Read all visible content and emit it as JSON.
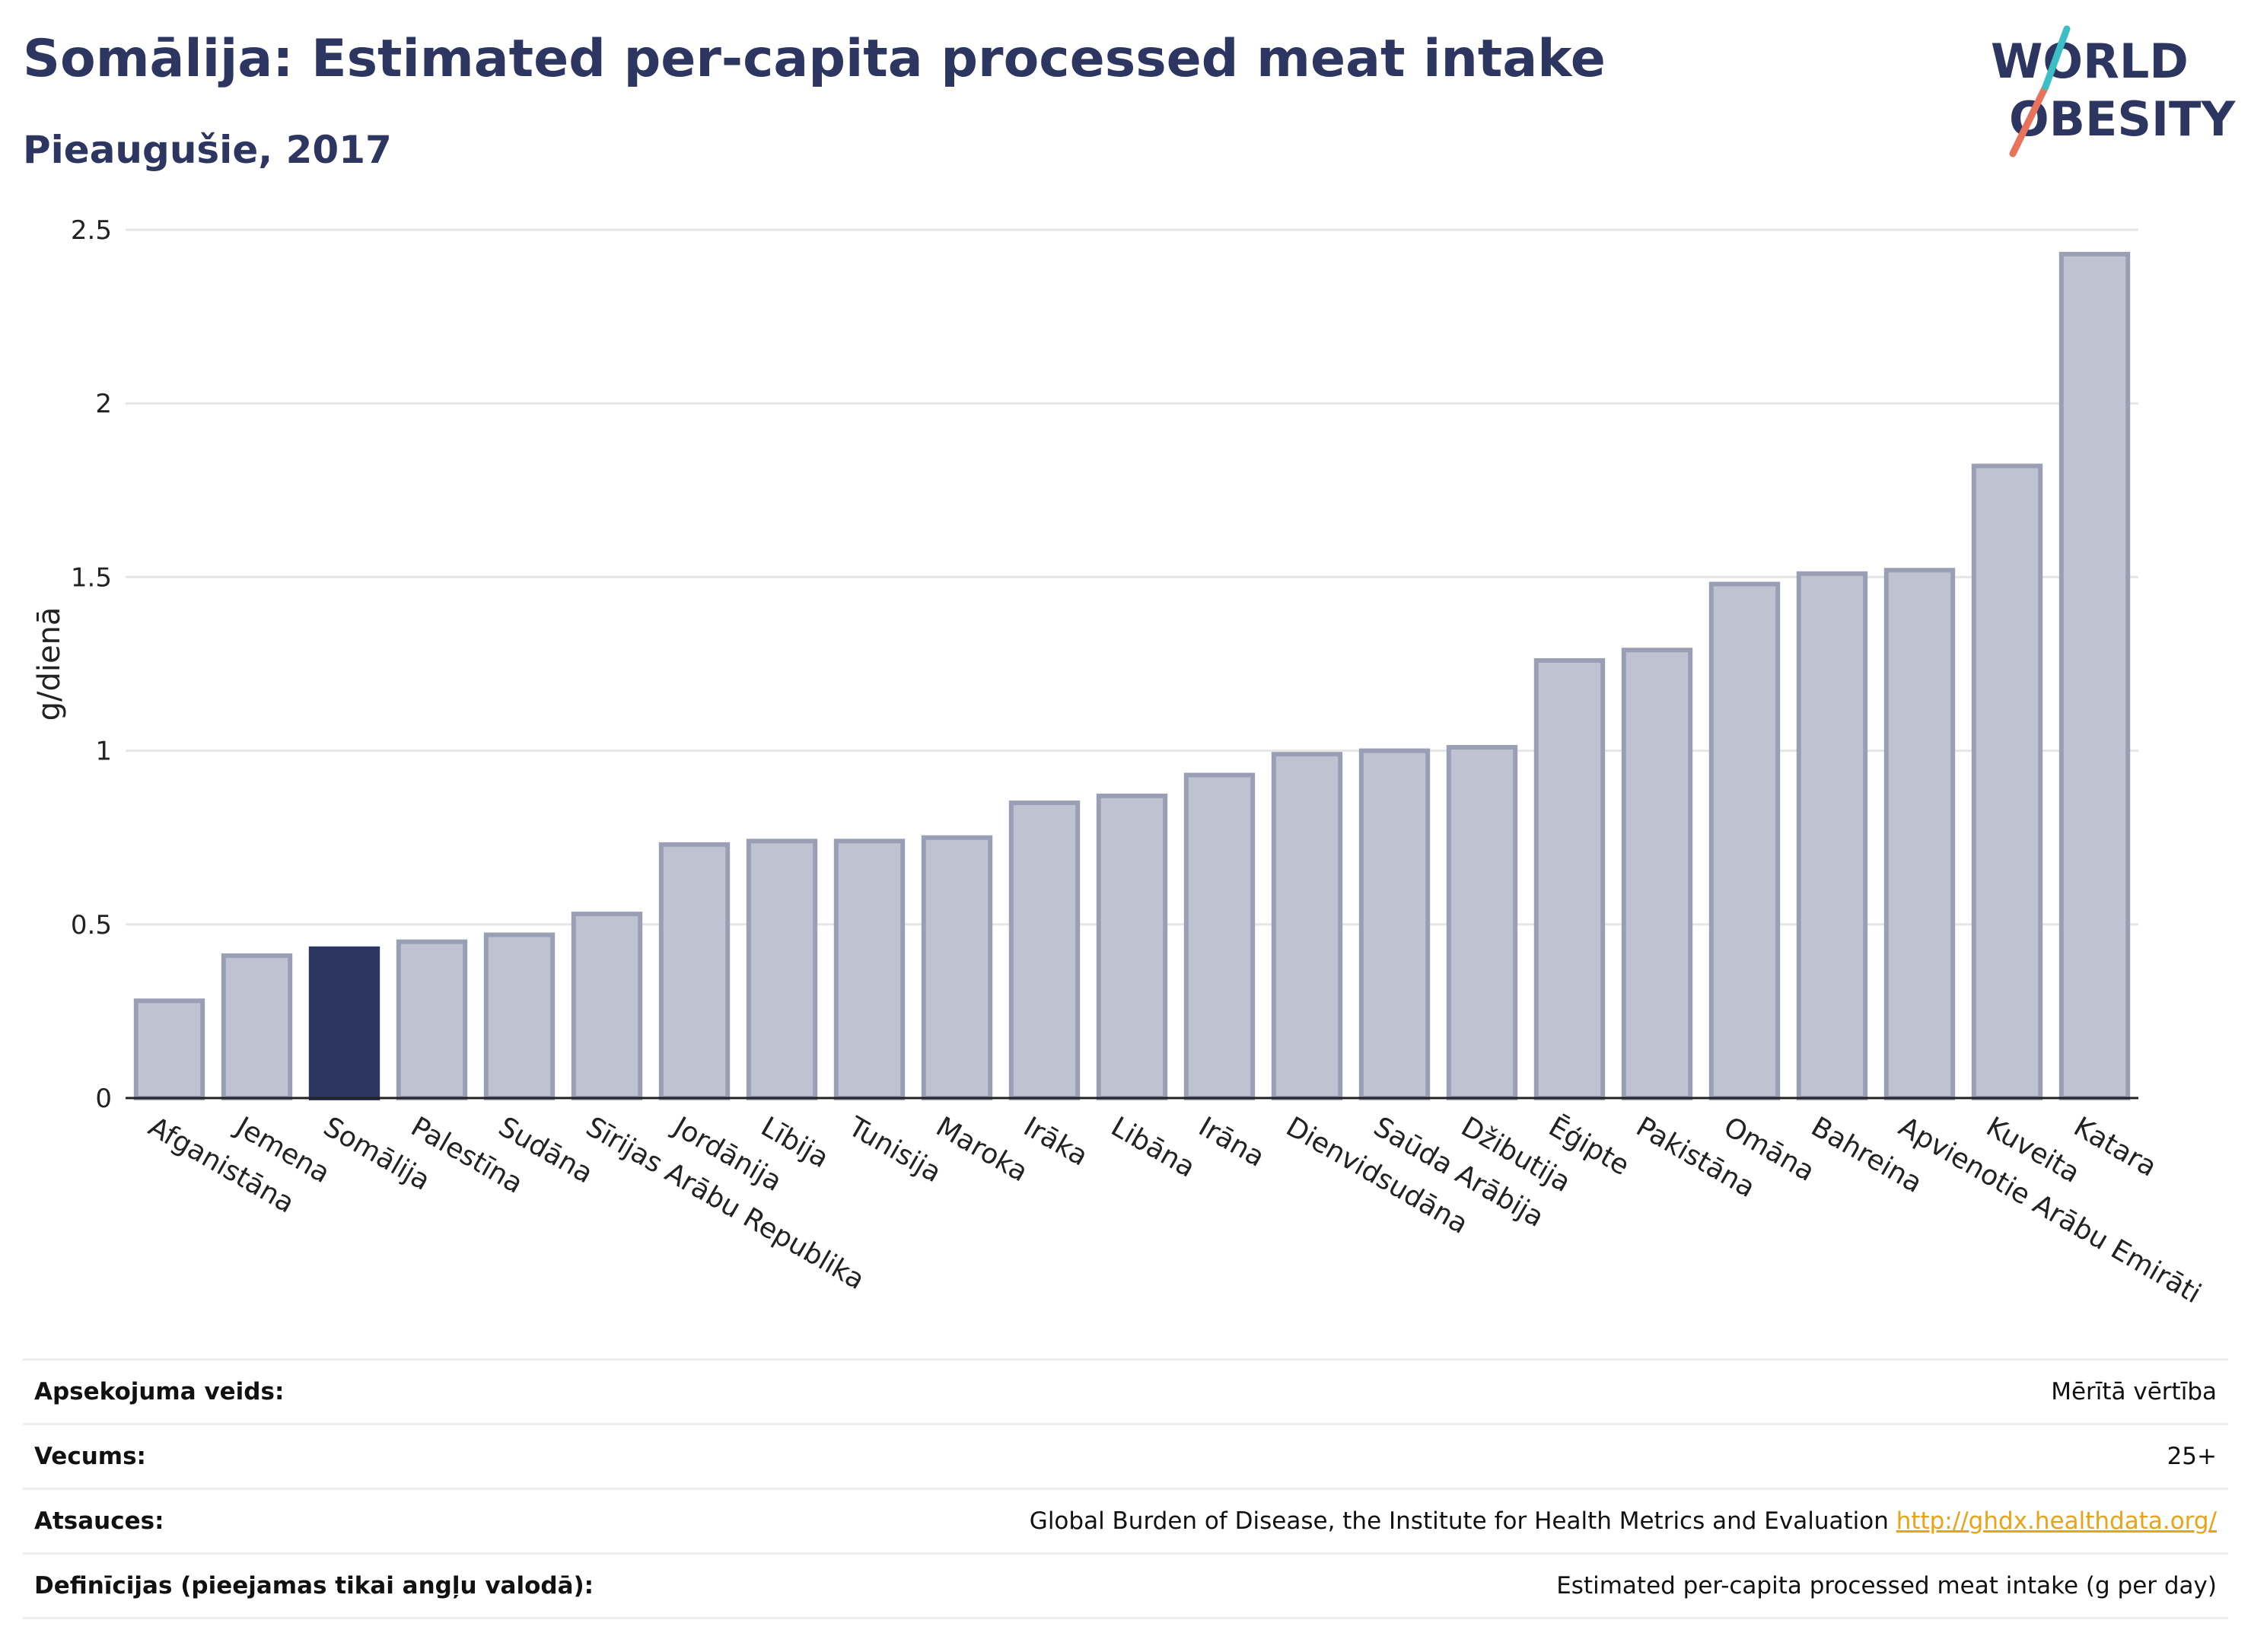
{
  "header": {
    "title": "Somālija: Estimated per-capita processed meat intake",
    "subtitle": "Pieaugušie, 2017"
  },
  "logo": {
    "line1": "WORLD",
    "line2": "OBESITY",
    "colors": [
      "#2d3561",
      "#e8735a",
      "#3bbfc4"
    ]
  },
  "colors": {
    "highlight": "#2d3561",
    "bar_fill": "#bfc3d1",
    "bar_stroke": "#9a9fb5",
    "grid": "#e6e6e6"
  },
  "chart_data": {
    "type": "bar",
    "title": "Somālija: Estimated per-capita processed meat intake",
    "subtitle": "Pieaugušie, 2017",
    "xlabel": "",
    "ylabel": "g/dienā",
    "ylim": [
      0,
      2.5
    ],
    "yticks": [
      0,
      0.5,
      1,
      1.5,
      2,
      2.5
    ],
    "ytick_labels": [
      "0",
      "0.5",
      "1",
      "1.5",
      "2",
      "2.5"
    ],
    "grid": true,
    "highlight": "Somālija",
    "categories": [
      "Afganistāna",
      "Jemena",
      "Somālija",
      "Palestīna",
      "Sudāna",
      "Sīrijas Arābu Republika",
      "Jordānija",
      "Lībija",
      "Tunisija",
      "Maroka",
      "Irāka",
      "Libāna",
      "Irāna",
      "Dienvidsudāna",
      "Saūda Arābija",
      "Džibutija",
      "Ēģipte",
      "Pakistāna",
      "Omāna",
      "Bahreina",
      "Apvienotie Arābu Emirāti",
      "Kuveita",
      "Katara"
    ],
    "values": [
      0.28,
      0.41,
      0.43,
      0.45,
      0.47,
      0.53,
      0.73,
      0.74,
      0.74,
      0.75,
      0.85,
      0.87,
      0.93,
      0.99,
      1.0,
      1.01,
      1.26,
      1.29,
      1.48,
      1.51,
      1.52,
      1.82,
      2.43
    ]
  },
  "meta": {
    "rows": [
      {
        "label": "Apsekojuma veids:",
        "value": "Mērītā vērtība"
      },
      {
        "label": "Vecums:",
        "value": "25+"
      },
      {
        "label": "Atsauces:",
        "value": "Global Burden of Disease, the Institute for Health Metrics and Evaluation",
        "link": "http://ghdx.healthdata.org/"
      },
      {
        "label": "Definīcijas (pieejamas tikai angļu valodā):",
        "value": "Estimated per-capita processed meat intake (g per day)"
      }
    ]
  }
}
